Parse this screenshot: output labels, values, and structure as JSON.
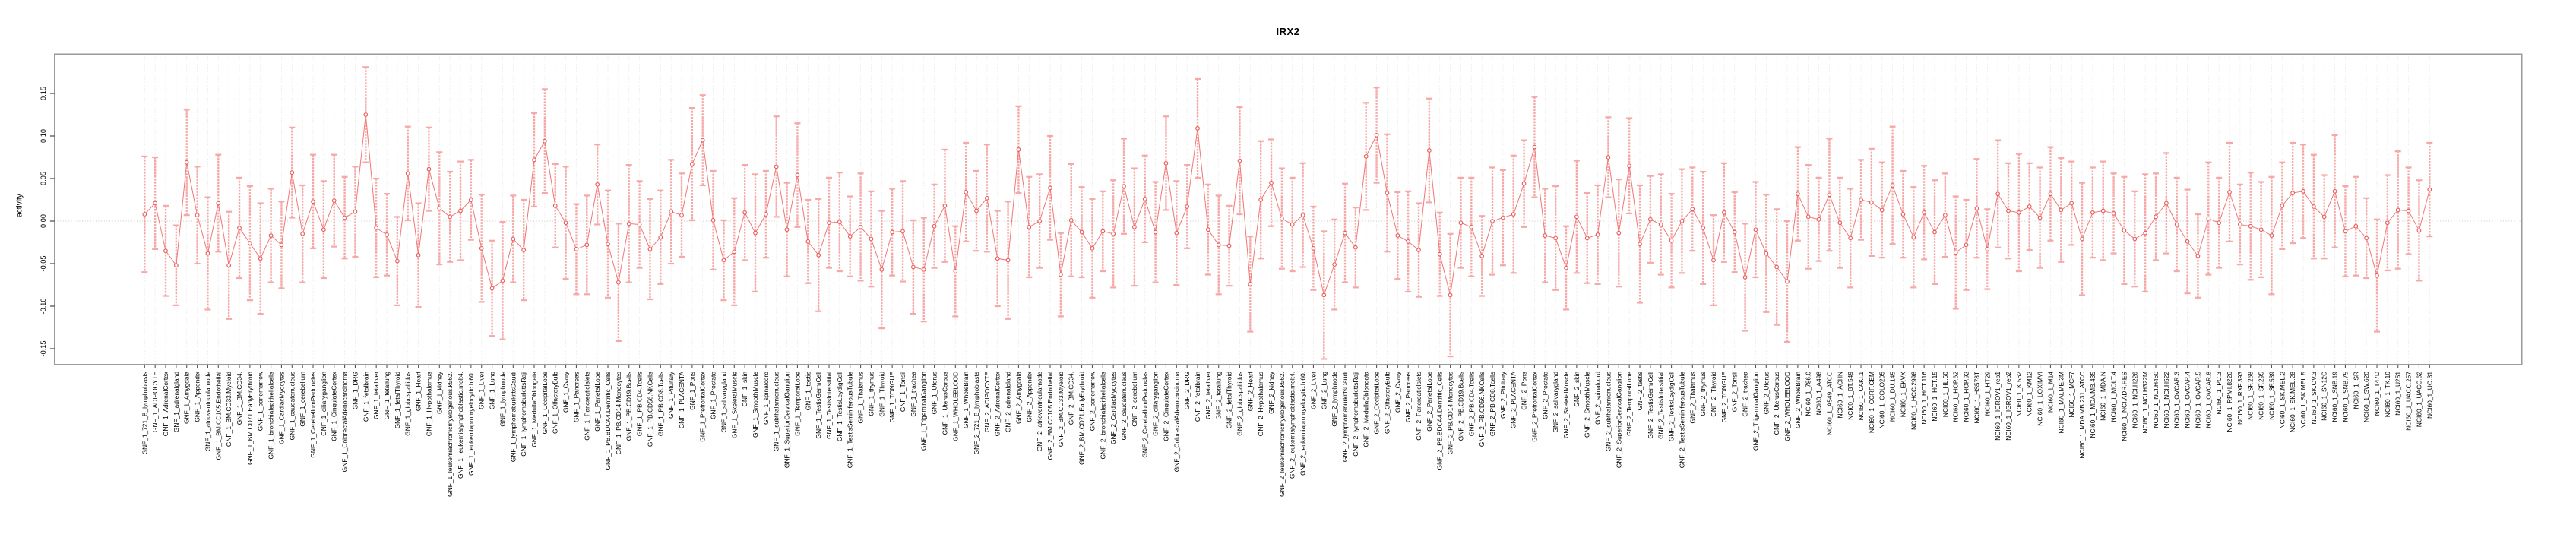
{
  "chart_data": {
    "type": "line",
    "subtype": "point-estimates-with-error-bars",
    "title": "IRX2",
    "xlabel": "",
    "ylabel": "activity",
    "ytick_labels": [
      "0.15",
      "0.10",
      "0.05",
      "0.00",
      "-0.05",
      "-0.10",
      "-0.15"
    ],
    "ylim": [
      -0.17,
      0.2
    ],
    "grid": "dotted vertical gridline per sample; dotted horizontal line at y=0; no legend",
    "legend_position": "none",
    "colors": {
      "point": "#e85c5c",
      "line": "#f07777",
      "errorbar": "#f6a8a8",
      "grid": "#e2e2e2",
      "zero_line": "#c9c9c9",
      "box_border": "#9a9a9a",
      "tick": "#555555",
      "text": "#000000"
    },
    "sample_groups": {
      "GNF_1": 79,
      "GNF_2": 79,
      "NCI60_1": 60
    },
    "gnf_tissues": [
      "721_B_lymphoblasts",
      "ADIPOCYTE",
      "AdrenalCortex",
      "adrenalgland",
      "Amygdala",
      "Appendix",
      "atrioventricularnode",
      "BM.CD105.Endothelial",
      "BM.CD33.Myeloid",
      "BM.CD34.",
      "BM.CD71.EarlyErythroid",
      "bonemarrow",
      "bronchialepithelialcells",
      "CardiacMyocytes",
      "caudatenucleus",
      "cerebellum",
      "CerebellumPeduncles",
      "ciliaryganglion",
      "CingulateCortex",
      "ColorectalAdenocarcinoma",
      "DRG",
      "fetalbrain",
      "fetalliver",
      "fetallung",
      "fetalThyroid",
      "globuspallidus",
      "Heart",
      "Hypothalamus",
      "kidney",
      "leukemiachronicmyelogenous.k562.",
      "leukemialymphoblastic.molt4.",
      "leukemiapromyelocytic.hl60.",
      "Liver",
      "Lung",
      "lymphnode",
      "lymphomaburkittsDaudi",
      "lymphomaburkittsRaji",
      "MedullaOblongata",
      "OccipitalLobe",
      "OlfactoryBulb",
      "Ovary",
      "Pancreas",
      "PancreaticIslets",
      "ParietalLobe",
      "PB.BDCA4.Dentritic_Cells",
      "PB.CD14.Monocytes",
      "PB.CD19.Bcells",
      "PB.CD4.Tcells",
      "PB.CD56.NKCells",
      "PB.CD8.Tcells",
      "Pituitary",
      "PLACENTA",
      "Pons",
      "PrefrontalCortex",
      "Prostate",
      "salivarygland",
      "SkeletalMuscle",
      "skin",
      "SmoothMuscle",
      "spinalcord",
      "subthalamicnucleus",
      "SuperiorCervicalGanglion",
      "TemporalLobe",
      "testis",
      "TestisGermCell",
      "TestisInterstitial",
      "TestisLeydigCell",
      "TestisSeminiferousTubule",
      "Thalamus",
      "thymus",
      "Thyroid",
      "TONGUE",
      "Tonsil",
      "trachea",
      "TrigeminalGanglion",
      "Uterus",
      "UterusCorpus",
      "WHOLEBLOOD",
      "WholeBrain"
    ],
    "nci60_lines": [
      "786.0",
      "A498",
      "A549_ATCC",
      "ACHN",
      "BT.549",
      "CAKI.1",
      "CCRF.CEM",
      "COLO205",
      "DU.145",
      "EKVX",
      "HCC.2998",
      "HCT.116",
      "HCT.15",
      "HL.60",
      "HOP.62",
      "HOP.92",
      "HS578T",
      "HT29",
      "IGROV1_rep1",
      "IGROV1_rep2",
      "K.562",
      "KM12",
      "LOXIMVI",
      "M14",
      "MALME.3M",
      "MCF7",
      "MDA.MB.231_ATCC",
      "MDA.MB.435",
      "MDA.N",
      "MOLT.4",
      "NCI.ADR.RES",
      "NCI.H226",
      "NCI.H322M",
      "NCI.H460",
      "NCI.H522",
      "OVCAR.3",
      "OVCAR.4",
      "OVCAR.5",
      "OVCAR.8",
      "PC.3",
      "RPMI.8226",
      "RXF.393",
      "SF.268",
      "SF.295",
      "SF.539",
      "SK.MEL.2",
      "SK.MEL.28",
      "SK.MEL.5",
      "SK.OV.3",
      "SN12C",
      "SNB.19",
      "SNB.75",
      "SR",
      "SW.620",
      "T47D",
      "TK.10",
      "U251",
      "UACC.257",
      "UACC.62",
      "UO.31"
    ],
    "values": [
      0.008,
      0.021,
      -0.035,
      -0.052,
      0.069,
      0.007,
      -0.038,
      0.021,
      -0.052,
      -0.008,
      -0.026,
      -0.044,
      -0.017,
      -0.028,
      0.057,
      -0.015,
      0.023,
      -0.01,
      0.024,
      0.004,
      0.011,
      0.125,
      -0.008,
      -0.016,
      -0.047,
      0.056,
      -0.04,
      0.061,
      0.015,
      0.005,
      0.012,
      0.025,
      -0.032,
      -0.079,
      -0.07,
      -0.021,
      -0.034,
      0.072,
      0.094,
      0.018,
      -0.002,
      -0.033,
      -0.028,
      0.043,
      -0.027,
      -0.072,
      -0.003,
      -0.004,
      -0.033,
      -0.019,
      0.011,
      0.007,
      0.067,
      0.095,
      0.001,
      -0.046,
      -0.036,
      0.01,
      -0.014,
      0.008,
      0.064,
      -0.01,
      0.054,
      -0.024,
      -0.04,
      -0.002,
      -0.001,
      -0.018,
      -0.007,
      -0.021,
      -0.057,
      -0.013,
      -0.012,
      -0.054,
      -0.057,
      -0.006,
      0.018,
      -0.059,
      0.034,
      0.012,
      0.027,
      -0.044,
      -0.046,
      0.084,
      -0.007,
      0.0,
      0.039,
      -0.063,
      0.001,
      -0.013,
      -0.032,
      -0.012,
      -0.015,
      0.041,
      -0.007,
      0.026,
      -0.013,
      0.068,
      -0.014,
      0.017,
      0.109,
      -0.01,
      -0.028,
      -0.029,
      0.071,
      -0.074,
      0.025,
      0.045,
      0.003,
      -0.004,
      0.007,
      -0.032,
      -0.087,
      -0.051,
      -0.014,
      -0.031,
      0.076,
      0.101,
      0.033,
      -0.017,
      -0.024,
      -0.034,
      0.083,
      -0.039,
      -0.087,
      -0.002,
      -0.007,
      -0.041,
      0.0,
      0.004,
      0.008,
      0.044,
      0.087,
      -0.017,
      -0.02,
      -0.055,
      0.005,
      -0.02,
      -0.016,
      0.075,
      -0.014,
      0.065,
      -0.027,
      0.002,
      -0.004,
      -0.023,
      0.0,
      0.014,
      -0.008,
      -0.046,
      0.01,
      -0.013,
      -0.066,
      -0.01,
      -0.038,
      -0.054,
      -0.071,
      0.032,
      0.005,
      0.002,
      0.031,
      -0.002,
      -0.02,
      0.025,
      0.022,
      0.013,
      0.042,
      0.008,
      -0.019,
      0.01,
      -0.013,
      0.007,
      -0.037,
      -0.028,
      0.015,
      -0.033,
      0.032,
      0.012,
      0.01,
      0.017,
      0.004,
      0.032,
      0.013,
      0.021,
      -0.021,
      0.01,
      0.012,
      0.009,
      -0.011,
      -0.021,
      -0.014,
      0.005,
      0.021,
      -0.004,
      -0.024,
      -0.041,
      0.003,
      -0.002,
      0.034,
      -0.004,
      -0.006,
      -0.01,
      -0.017,
      0.018,
      0.033,
      0.035,
      0.017,
      0.005,
      0.035,
      -0.012,
      -0.006,
      -0.02,
      -0.064,
      -0.002,
      0.013,
      0.012,
      -0.011,
      0.037
    ],
    "errors": [
      0.068,
      0.054,
      0.053,
      0.047,
      0.062,
      0.057,
      0.066,
      0.057,
      0.063,
      0.059,
      0.067,
      0.065,
      0.055,
      0.051,
      0.053,
      0.057,
      0.055,
      0.057,
      0.054,
      0.048,
      0.053,
      0.056,
      0.058,
      0.048,
      0.052,
      0.055,
      0.061,
      0.049,
      0.066,
      0.053,
      0.058,
      0.047,
      0.063,
      0.056,
      0.069,
      0.051,
      0.059,
      0.055,
      0.061,
      0.049,
      0.066,
      0.053,
      0.058,
      0.047,
      0.063,
      0.069,
      0.069,
      0.051,
      0.059,
      0.055,
      0.061,
      0.049,
      0.066,
      0.053,
      0.058,
      0.047,
      0.063,
      0.056,
      0.069,
      0.051,
      0.059,
      0.055,
      0.061,
      0.049,
      0.066,
      0.053,
      0.058,
      0.047,
      0.063,
      0.056,
      0.069,
      0.051,
      0.059,
      0.055,
      0.061,
      0.049,
      0.066,
      0.053,
      0.058,
      0.047,
      0.063,
      0.056,
      0.069,
      0.051,
      0.059,
      0.055,
      0.061,
      0.049,
      0.066,
      0.053,
      0.058,
      0.047,
      0.063,
      0.056,
      0.069,
      0.051,
      0.059,
      0.055,
      0.061,
      0.049,
      0.058,
      0.053,
      0.058,
      0.047,
      0.063,
      0.056,
      0.069,
      0.051,
      0.059,
      0.055,
      0.061,
      0.049,
      0.075,
      0.053,
      0.058,
      0.047,
      0.063,
      0.056,
      0.069,
      0.051,
      0.059,
      0.055,
      0.061,
      0.049,
      0.072,
      0.053,
      0.058,
      0.047,
      0.063,
      0.056,
      0.069,
      0.051,
      0.059,
      0.055,
      0.061,
      0.049,
      0.066,
      0.053,
      0.058,
      0.047,
      0.063,
      0.056,
      0.069,
      0.051,
      0.059,
      0.055,
      0.061,
      0.049,
      0.066,
      0.053,
      0.058,
      0.047,
      0.063,
      0.056,
      0.069,
      0.068,
      0.071,
      0.055,
      0.061,
      0.049,
      0.066,
      0.053,
      0.058,
      0.047,
      0.063,
      0.056,
      0.069,
      0.051,
      0.059,
      0.055,
      0.061,
      0.049,
      0.066,
      0.053,
      0.058,
      0.047,
      0.063,
      0.056,
      0.069,
      0.051,
      0.059,
      0.055,
      0.061,
      0.049,
      0.066,
      0.053,
      0.058,
      0.047,
      0.063,
      0.056,
      0.069,
      0.051,
      0.059,
      0.055,
      0.061,
      0.049,
      0.066,
      0.053,
      0.058,
      0.047,
      0.063,
      0.056,
      0.069,
      0.051,
      0.059,
      0.055,
      0.061,
      0.049,
      0.066,
      0.053,
      0.058,
      0.047,
      0.066,
      0.056,
      0.069,
      0.051,
      0.059,
      0.055
    ]
  }
}
